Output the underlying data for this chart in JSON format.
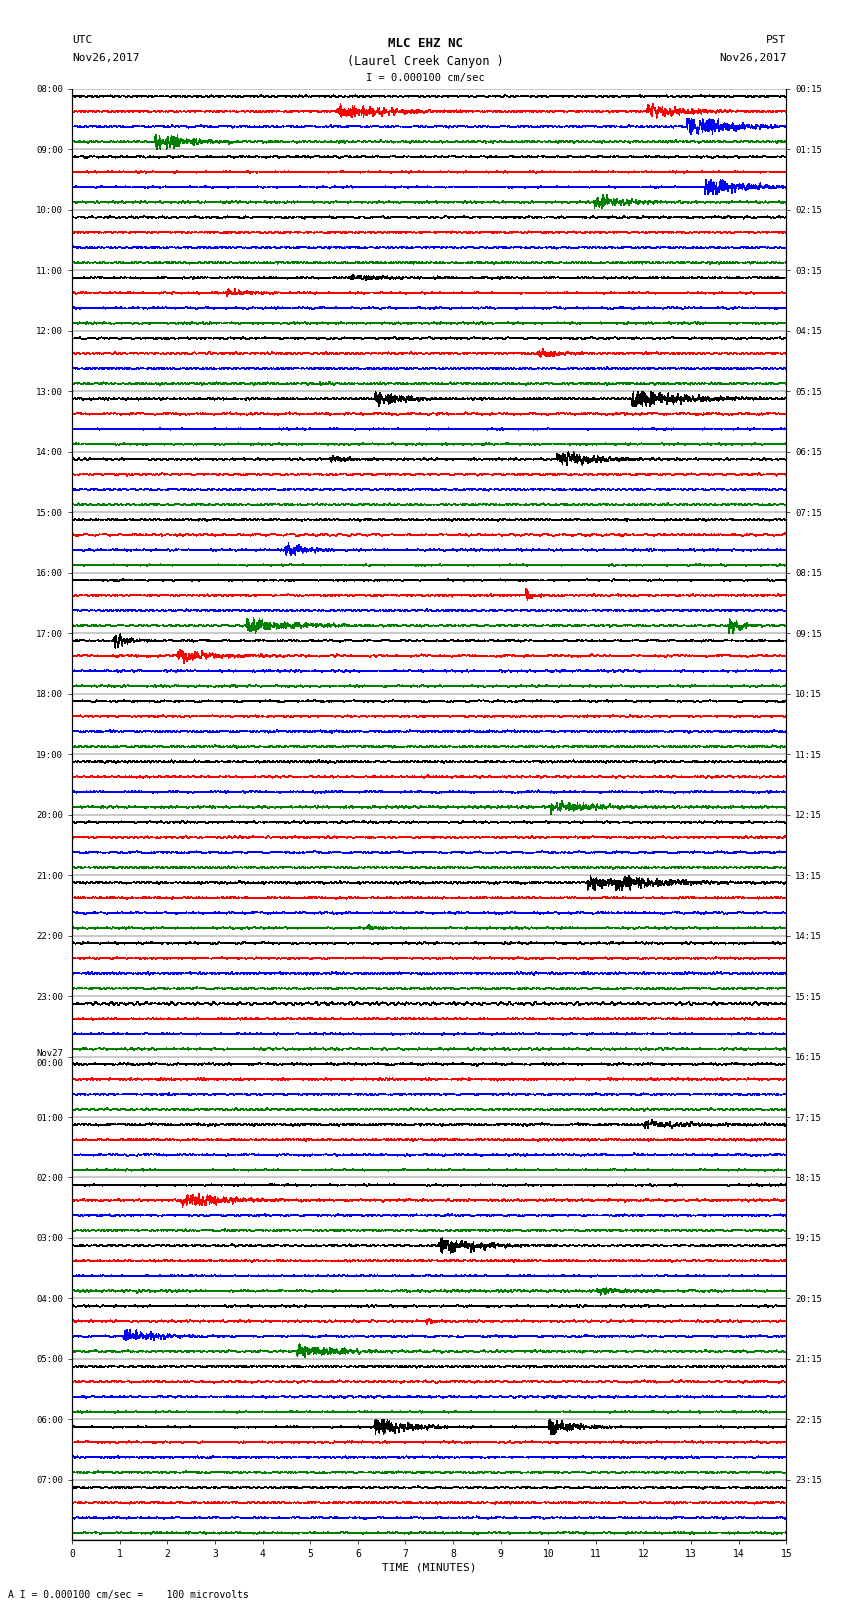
{
  "title_line1": "MLC EHZ NC",
  "title_line2": "(Laurel Creek Canyon )",
  "scale_label": "I = 0.000100 cm/sec",
  "footer_label": "A I = 0.000100 cm/sec =    100 microvolts",
  "xlabel": "TIME (MINUTES)",
  "left_label_top": "UTC",
  "left_label_date": "Nov26,2017",
  "right_label_top": "PST",
  "right_label_date": "Nov26,2017",
  "num_groups": 24,
  "traces_per_group": 4,
  "colors": [
    "black",
    "red",
    "blue",
    "green"
  ],
  "bg_color": "white",
  "line_width": 0.45,
  "time_minutes": 15,
  "left_times_utc": [
    "08:00",
    "09:00",
    "10:00",
    "11:00",
    "12:00",
    "13:00",
    "14:00",
    "15:00",
    "16:00",
    "17:00",
    "18:00",
    "19:00",
    "20:00",
    "21:00",
    "22:00",
    "23:00",
    "Nov27\n00:00",
    "01:00",
    "02:00",
    "03:00",
    "04:00",
    "05:00",
    "06:00",
    "07:00"
  ],
  "right_times_pst": [
    "00:15",
    "01:15",
    "02:15",
    "03:15",
    "04:15",
    "05:15",
    "06:15",
    "07:15",
    "08:15",
    "09:15",
    "10:15",
    "11:15",
    "12:15",
    "13:15",
    "14:15",
    "15:15",
    "16:15",
    "17:15",
    "18:15",
    "19:15",
    "20:15",
    "21:15",
    "22:15",
    "23:15"
  ]
}
